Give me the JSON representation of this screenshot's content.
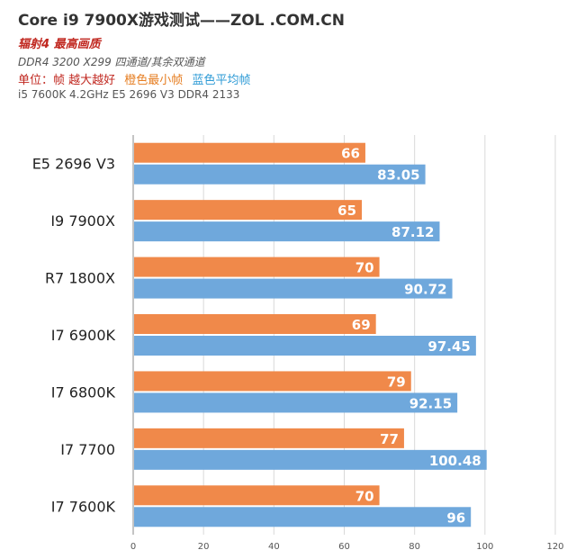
{
  "header": {
    "title": "Core i9 7900X游戏测试——ZOL .COM.CN",
    "subtitle": "辐射4 最高画质",
    "config": "DDR4 3200  X299 四通道/其余双通道",
    "unit_label": "单位：帧 越大越好",
    "orange_label": "橙色最小帧",
    "blue_label": "蓝色平均帧",
    "reference": "i5 7600K 4.2GHz  E5 2696 V3 DDR4 2133"
  },
  "chart_data": {
    "type": "bar",
    "orientation": "horizontal",
    "categories": [
      "E5 2696 V3",
      "I9 7900X",
      "R7 1800X",
      "I7 6900K",
      "I7 6800K",
      "I7 7700",
      "I7 7600K"
    ],
    "series": [
      {
        "name": "最小帧",
        "color": "#f0894a",
        "values": [
          66,
          65,
          70,
          69,
          79,
          77,
          70
        ]
      },
      {
        "name": "平均帧",
        "color": "#6fa8dc",
        "values": [
          83.05,
          87.12,
          90.72,
          97.45,
          92.15,
          100.48,
          96
        ]
      }
    ],
    "xlim": [
      0,
      120
    ],
    "xticks": [
      0,
      20,
      40,
      60,
      80,
      100,
      120
    ],
    "grid": true,
    "data_labels": true
  }
}
